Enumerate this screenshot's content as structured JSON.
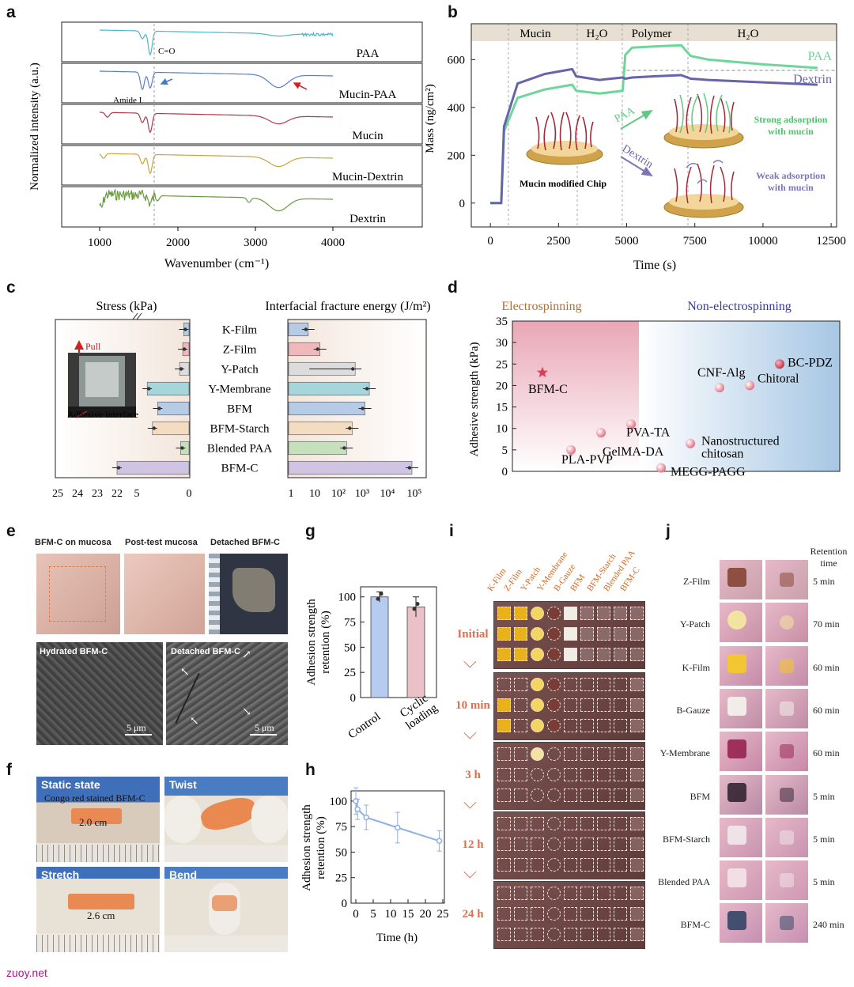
{
  "panel_labels": {
    "a": "a",
    "b": "b",
    "c": "c",
    "d": "d",
    "e": "e",
    "f": "f",
    "g": "g",
    "h": "h",
    "i": "i",
    "j": "j"
  },
  "panel_a": {
    "ylabel": "Normalized intensity (a.u.)",
    "xlabel": "Wavenumber (cm⁻¹)",
    "xticks": [
      "1000",
      "2000",
      "3000",
      "4000"
    ],
    "traces": [
      {
        "name": "PAA",
        "color": "#49b8c9"
      },
      {
        "name": "Mucin-PAA",
        "color": "#5b7fc7"
      },
      {
        "name": "Mucin",
        "color": "#b03a4a"
      },
      {
        "name": "Mucin-Dextrin",
        "color": "#c9a440"
      },
      {
        "name": "Dextrin",
        "color": "#6a9a3e"
      }
    ],
    "annot_co": "C=O",
    "annot_amide": "Amide I"
  },
  "chart_data": [
    {
      "type": "line",
      "panel": "b",
      "xlabel": "Time (s)",
      "ylabel": "Mass (ng/cm²)",
      "xlim": [
        -700,
        12700
      ],
      "ylim": [
        -100,
        750
      ],
      "xticks": [
        0,
        2500,
        5000,
        7500,
        10000,
        12500
      ],
      "yticks": [
        0,
        200,
        400,
        600
      ],
      "phases": [
        "Mucin",
        "H₂O",
        "Polymer",
        "H₂O"
      ],
      "series": [
        {
          "name": "PAA",
          "color": "#6fd69a",
          "x": [
            0,
            400,
            500,
            1000,
            2000,
            3000,
            3150,
            4000,
            4850,
            4950,
            5200,
            6000,
            7000,
            7350,
            8000,
            10000,
            12000
          ],
          "y": [
            0,
            0,
            300,
            440,
            475,
            495,
            470,
            458,
            470,
            620,
            650,
            655,
            660,
            615,
            600,
            580,
            565
          ]
        },
        {
          "name": "Dextrin",
          "color": "#6864aa",
          "x": [
            0,
            400,
            500,
            1000,
            2000,
            3000,
            3150,
            4000,
            4850,
            4950,
            5200,
            6000,
            7000,
            7350,
            8000,
            10000,
            12000
          ],
          "y": [
            0,
            0,
            320,
            500,
            540,
            560,
            530,
            515,
            525,
            520,
            525,
            530,
            535,
            520,
            515,
            505,
            495
          ]
        }
      ],
      "annotations": {
        "paa_arrow": "PAA",
        "dextrin_arrow": "Dextrin",
        "chip_label": "Mucin modified Chip",
        "strong": "Strong adsorption with mucin",
        "weak": "Weak adsorption with mucin"
      }
    },
    {
      "type": "bar",
      "panel": "c",
      "categories": [
        "K-Film",
        "Z-Film",
        "Y-Patch",
        "Y-Membrane",
        "BFM",
        "BFM-Starch",
        "Blended PAA",
        "BFM-C"
      ],
      "colors": [
        "#b6cbe6",
        "#f0b7bd",
        "#dcdcdc",
        "#a7d5dc",
        "#b6cbe6",
        "#f3dcc2",
        "#c6e0bc",
        "#cfc5e3"
      ],
      "left_title": "Stress (kPa)",
      "right_title": "Interfacial fracture energy (J/m²)",
      "stress_kPa": [
        0.5,
        0.6,
        0.9,
        4.0,
        3.0,
        3.5,
        0.8,
        22.0
      ],
      "energy_Jm2": [
        5,
        15,
        400,
        1500,
        1000,
        300,
        180,
        80000
      ],
      "left_ticks": [
        "25",
        "24",
        "23",
        "22",
        "5",
        "0"
      ],
      "right_ticks": [
        "1",
        "10",
        "10²",
        "10³",
        "10⁴",
        "10⁵"
      ],
      "inset_pull": "Pull",
      "inset_interface": "Adhesive interface"
    },
    {
      "type": "scatter",
      "panel": "d",
      "ylabel": "Adhesive strength (kPa)",
      "ylim": [
        0,
        35
      ],
      "yticks": [
        0,
        5,
        10,
        15,
        20,
        25,
        30,
        35
      ],
      "region_left": "Electrospinning",
      "region_right": "Non-electrospinning",
      "points": [
        {
          "label": "BFM-C",
          "y": 23,
          "marker": "star"
        },
        {
          "label": "PLA-PVP",
          "y": 5
        },
        {
          "label": "GelMA-DA",
          "y": 9
        },
        {
          "label": "PVA-TA",
          "y": 11
        },
        {
          "label": "MEGG-PAGG",
          "y": 0.8
        },
        {
          "label": "Nanostructured chitosan",
          "y": 6.5
        },
        {
          "label": "CNF-Alg",
          "y": 19.5
        },
        {
          "label": "Chitoral",
          "y": 20
        },
        {
          "label": "BC-PDZ",
          "y": 25
        }
      ]
    },
    {
      "type": "bar",
      "panel": "g",
      "ylabel": "Adhesion strength retention (%)",
      "categories": [
        "Control",
        "Cyclic loading"
      ],
      "values": [
        100,
        90
      ],
      "errors": [
        5,
        10
      ],
      "ylim": [
        0,
        110
      ],
      "yticks": [
        0,
        25,
        50,
        75,
        100
      ],
      "colors": [
        "#b6cbf0",
        "#e9c1c6"
      ]
    },
    {
      "type": "line",
      "panel": "h",
      "xlabel": "Time (h)",
      "ylabel": "Adhesion strength retention (%)",
      "x": [
        0,
        0.5,
        3,
        12,
        24
      ],
      "y": [
        100,
        92,
        84,
        74,
        61
      ],
      "errors": [
        13,
        10,
        12,
        15,
        10
      ],
      "xlim": [
        0,
        25
      ],
      "ylim": [
        0,
        110
      ],
      "xticks": [
        0,
        5,
        10,
        15,
        20,
        25
      ],
      "yticks": [
        0,
        25,
        50,
        75,
        100
      ]
    }
  ],
  "panel_e": {
    "top_labels": [
      "BFM-C on mucosa",
      "Post-test mucosa",
      "Detached BFM-C"
    ],
    "bottom_labels": [
      "Hydrated BFM-C",
      "Detached BFM-C"
    ],
    "scale": "5 μm"
  },
  "panel_f": {
    "labels": [
      "Static state",
      "Twist",
      "Stretch",
      "Bend"
    ],
    "stain_label": "Congo red stained BFM-C",
    "len1": "2.0 cm",
    "len2": "2.6 cm"
  },
  "panel_i": {
    "columns": [
      "K-Film",
      "Z-Film",
      "Y-Patch",
      "Y-Membrane",
      "B-Gauze",
      "BFM",
      "BFM-Starch",
      "Blended PAA",
      "BFM-C"
    ],
    "rows": [
      "Initial",
      "10 min",
      "3 h",
      "12 h",
      "24 h"
    ]
  },
  "panel_j": {
    "header": "Retention time",
    "rows": [
      {
        "name": "Z-Film",
        "time": "5 min"
      },
      {
        "name": "Y-Patch",
        "time": "70 min"
      },
      {
        "name": "K-Film",
        "time": "60 min"
      },
      {
        "name": "B-Gauze",
        "time": "60 min"
      },
      {
        "name": "Y-Membrane",
        "time": "60 min"
      },
      {
        "name": "BFM",
        "time": "5 min"
      },
      {
        "name": "BFM-Starch",
        "time": "5 min"
      },
      {
        "name": "Blended PAA",
        "time": "5  min"
      },
      {
        "name": "BFM-C",
        "time": "240 min"
      }
    ]
  },
  "watermark": "zuoy.net"
}
